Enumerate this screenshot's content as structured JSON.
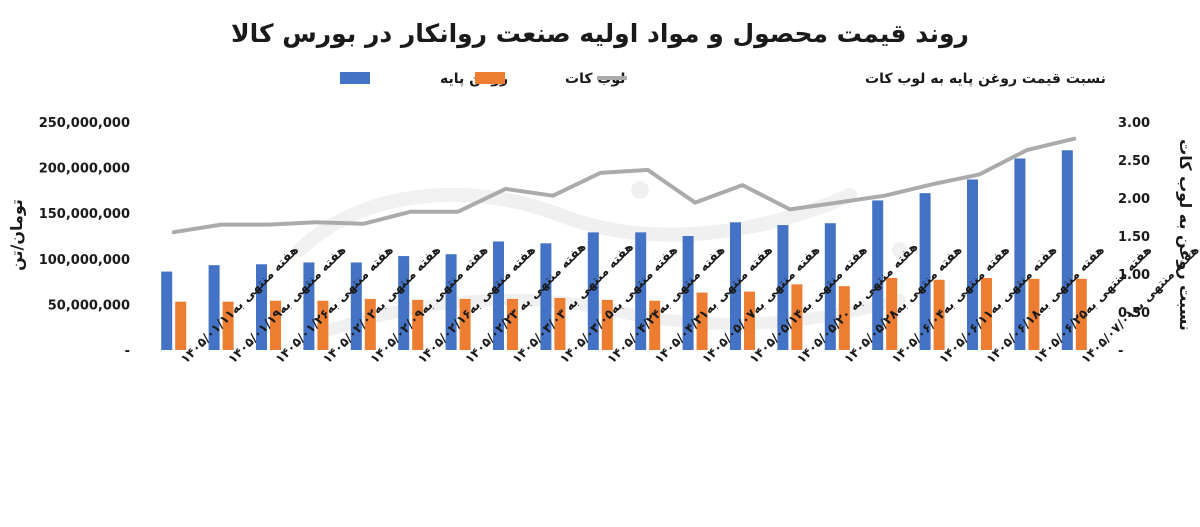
{
  "colors": {
    "base_oil": "#4472C4",
    "lube_cut": "#ED7D31",
    "ratio": "#ABABAB",
    "text": "#1a1a1a",
    "watermark": "#d9d9d9"
  },
  "chart_data": {
    "type": "bar",
    "title": "روند قیمت محصول و مواد اولیه صنعت روانکار در بورس کالا",
    "ylabel": "تومان/تن",
    "y2label": "نسبت روغن به لوب کات",
    "ylim": [
      0,
      250000000
    ],
    "y2lim": [
      0,
      3
    ],
    "yticks": [
      "-",
      "50,000,000",
      "100,000,000",
      "150,000,000",
      "200,000,000",
      "250,000,000"
    ],
    "y2ticks": [
      "-",
      "0.50",
      "1.00",
      "1.50",
      "2.00",
      "2.50",
      "3.00"
    ],
    "legend_position": "top",
    "grid": false,
    "categories": [
      "هفته منتهی به۱۴۰۵/۰۱/۱۱",
      "هفته منتهی به۱۴۰۵/۰۱/۱۹",
      "هفته منتهی به۱۴۰۵/۰۱/۲۶",
      "هفته منتهی به۱۴۰۵/۰۲/۰۲",
      "هفته منتهی به۱۴۰۵/۰۲/۰۹",
      "هفته منتهی به۱۴۰۵/۰۲/۱۶",
      "هفته منتهی به ۱۴۰۵/۰۲/۲۳",
      "هفته منتهی به ۱۴۰۵/۰۳/۰۳",
      "هفته منتهی به۱۴۰۵/۰۳/۰۵",
      "هفته منتهی به۱۴۰۵/۰۴/۲۴",
      "هفته منتهی به۱۴۰۵/۰۴/۳۱",
      "هفته منتهی به۱۴۰۵/۰۵/۰۷",
      "هفته منتهی به۱۴۰۵/۰۵/۱۴",
      "هفته منتهی به ۱۴۰۵/۰۵/۲۰",
      "هفته منتهی به۱۴۰۵/۰۵/۲۸",
      "هفته منتهی به۱۴۰۵/۰۶/۰۴",
      "هفته منتهی به۱۴۰۵/۰۶/۱۱",
      "هفته منتهی به۱۴۰۵/۰۶/۱۸",
      "هفته منتهی به۱۴۰۵/۰۶/۲۵",
      "هفته منتهی به۱۴۰۵/۰۷/۰۱"
    ],
    "series": [
      {
        "name": "روغن پایه",
        "kind": "bar",
        "axis": "left",
        "values": [
          86000000,
          93000000,
          94000000,
          96000000,
          96000000,
          103000000,
          105000000,
          119000000,
          117000000,
          129000000,
          129000000,
          125000000,
          140000000,
          137000000,
          139000000,
          164000000,
          172000000,
          187000000,
          210000000,
          219000000
        ]
      },
      {
        "name": "لوب کات",
        "kind": "bar",
        "axis": "left",
        "values": [
          53000000,
          53000000,
          54000000,
          54000000,
          56000000,
          55000000,
          56000000,
          56000000,
          57000000,
          55000000,
          54000000,
          63000000,
          64000000,
          72000000,
          70000000,
          79000000,
          77000000,
          79000000,
          78000000,
          78000000
        ]
      },
      {
        "name": "نسبت قیمت روغن پایه به لوب کات",
        "kind": "line",
        "axis": "right",
        "values": [
          1.55,
          1.65,
          1.65,
          1.68,
          1.66,
          1.82,
          1.82,
          2.12,
          2.03,
          2.33,
          2.37,
          1.94,
          2.17,
          1.85,
          1.94,
          2.03,
          2.18,
          2.31,
          2.63,
          2.78
        ]
      }
    ]
  },
  "watermark_icon": "brand-watermark-icon"
}
